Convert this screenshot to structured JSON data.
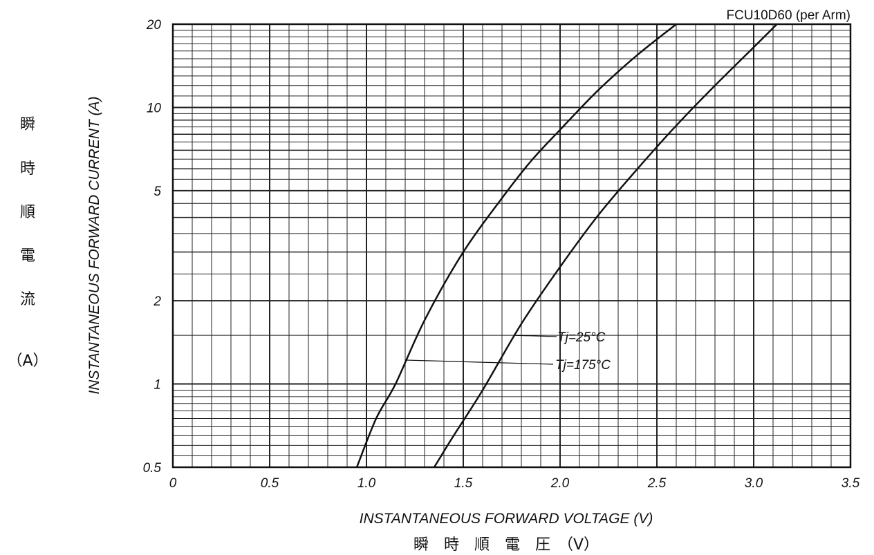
{
  "chart_data": {
    "type": "line",
    "title": "FCU10D60 (per Arm)",
    "xlabel": "INSTANTANEOUS FORWARD VOLTAGE (V)",
    "xlabel_jp": "瞬　時　順　電　圧　（V）",
    "ylabel": "INSTANTANEOUS FORWARD CURRENT (A)",
    "ylabel_jp": [
      "瞬",
      "時",
      "順",
      "電",
      "流",
      "（A）"
    ],
    "xlim": [
      0,
      3.5
    ],
    "ylim": [
      0.5,
      20
    ],
    "yscale": "log",
    "grid": true,
    "x_ticks": [
      "0",
      "0.5",
      "1.0",
      "1.5",
      "2.0",
      "2.5",
      "3.0",
      "3.5"
    ],
    "y_ticks": [
      "0.5",
      "1",
      "2",
      "5",
      "10",
      "20"
    ],
    "series": [
      {
        "name": "Tj=175°C",
        "x": [
          0.95,
          1.05,
          1.15,
          1.3,
          1.5,
          1.7,
          1.85,
          2.0,
          2.2,
          2.4,
          2.6
        ],
        "y": [
          0.5,
          0.75,
          1.0,
          1.7,
          3.0,
          4.7,
          6.4,
          8.3,
          11.6,
          15.5,
          20
        ]
      },
      {
        "name": "Tj=25°C",
        "x": [
          1.35,
          1.45,
          1.6,
          1.8,
          2.0,
          2.2,
          2.4,
          2.6,
          2.8,
          3.0,
          3.12
        ],
        "y": [
          0.5,
          0.65,
          0.95,
          1.65,
          2.65,
          4.1,
          6.0,
          8.6,
          12.0,
          16.5,
          20
        ]
      }
    ]
  }
}
